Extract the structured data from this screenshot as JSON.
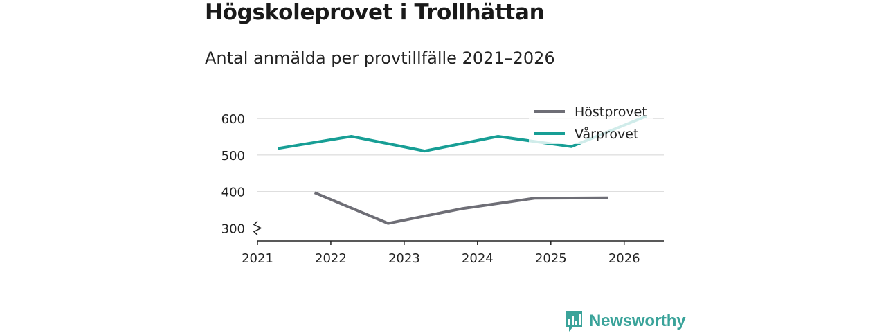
{
  "title": "Högskoleprovet i Trollhättan",
  "subtitle": "Antal anmälda per provtillfälle 2021–2026",
  "brand": {
    "name": "Newsworthy",
    "icon": "newsworthy-logo-icon",
    "color": "#3aa39a"
  },
  "chart_data": {
    "type": "line",
    "title": "Högskoleprovet i Trollhättan",
    "subtitle": "Antal anmälda per provtillfälle 2021–2026",
    "xlabel": "",
    "ylabel": "",
    "x_ticks": [
      "2021",
      "2022",
      "2023",
      "2024",
      "2025",
      "2026"
    ],
    "y_ticks": [
      300,
      400,
      500,
      600
    ],
    "xlim": [
      2021,
      2026.55
    ],
    "ylim": [
      265,
      640
    ],
    "grid": true,
    "axis_break": true,
    "legend_position": "top-right",
    "series": [
      {
        "name": "Höstprovet",
        "color": "#6e6e76",
        "x": [
          2021.78,
          2022.78,
          2023.78,
          2024.78,
          2025.78
        ],
        "y": [
          397,
          313,
          353,
          382,
          383
        ]
      },
      {
        "name": "Vårprovet",
        "color": "#179e95",
        "x": [
          2021.28,
          2022.28,
          2023.28,
          2024.28,
          2025.28,
          2026.3
        ],
        "y": [
          518,
          551,
          511,
          551,
          523,
          606
        ]
      }
    ]
  }
}
